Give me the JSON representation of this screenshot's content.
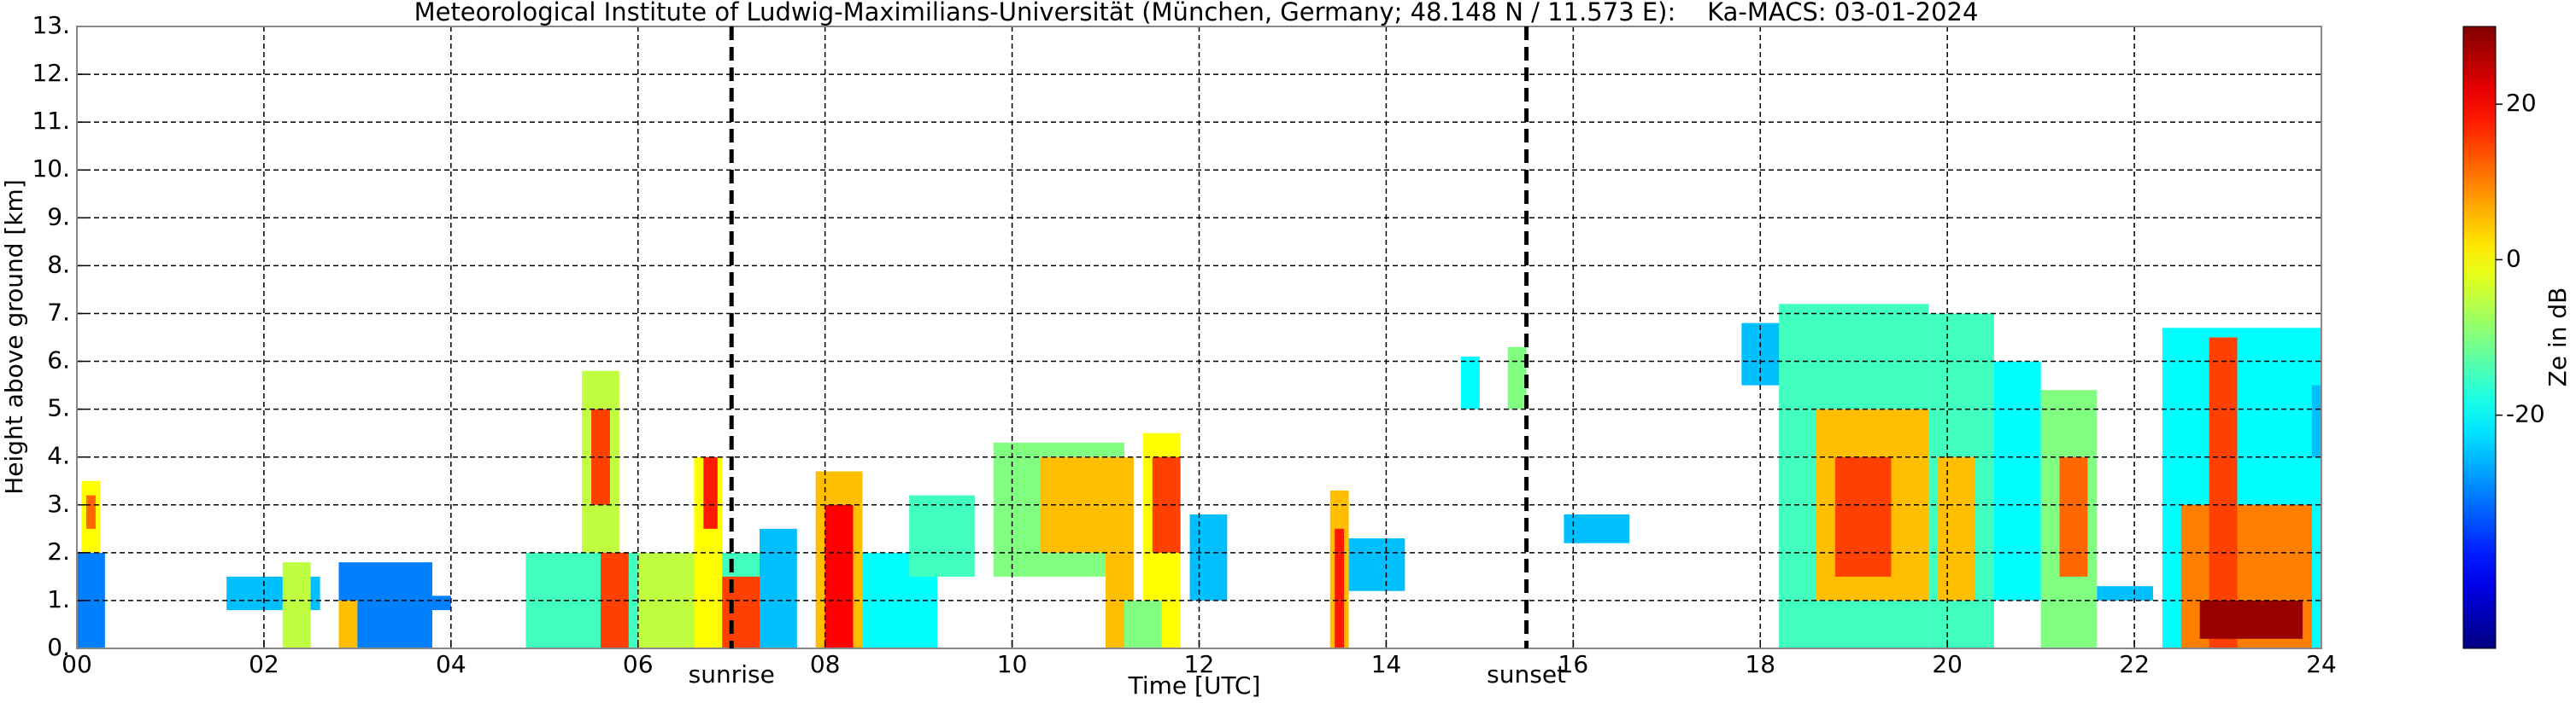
{
  "chart_data": {
    "type": "heatmap",
    "title": "Meteorological Institute of Ludwig-Maximilians-Universität (München, Germany; 48.148 N / 11.573 E):    Ka-MACS: 03-01-2024",
    "x_label": "Time [UTC]",
    "y_label": "Height above ground [km]",
    "colorbar_label": "Ze in dB",
    "colormap": "jet",
    "grid": true,
    "xlim": [
      0,
      24
    ],
    "xticks": [
      {
        "value": 0,
        "label": "00"
      },
      {
        "value": 2,
        "label": "02"
      },
      {
        "value": 4,
        "label": "04"
      },
      {
        "value": 6,
        "label": "06"
      },
      {
        "value": 8,
        "label": "08"
      },
      {
        "value": 10,
        "label": "10"
      },
      {
        "value": 12,
        "label": "12"
      },
      {
        "value": 14,
        "label": "14"
      },
      {
        "value": 16,
        "label": "16"
      },
      {
        "value": 18,
        "label": "18"
      },
      {
        "value": 20,
        "label": "20"
      },
      {
        "value": 22,
        "label": "22"
      },
      {
        "value": 24,
        "label": "24"
      }
    ],
    "ylim": [
      0,
      13
    ],
    "yticks": [
      {
        "value": 0,
        "label": "0."
      },
      {
        "value": 1,
        "label": "1."
      },
      {
        "value": 2,
        "label": "2."
      },
      {
        "value": 3,
        "label": "3."
      },
      {
        "value": 4,
        "label": "4."
      },
      {
        "value": 5,
        "label": "5."
      },
      {
        "value": 6,
        "label": "6."
      },
      {
        "value": 7,
        "label": "7."
      },
      {
        "value": 8,
        "label": "8."
      },
      {
        "value": 9,
        "label": "9."
      },
      {
        "value": 10,
        "label": "10."
      },
      {
        "value": 11,
        "label": "11."
      },
      {
        "value": 12,
        "label": "12."
      },
      {
        "value": 13,
        "label": "13."
      }
    ],
    "clim": [
      -50,
      30
    ],
    "cticks": [
      -20,
      0,
      20
    ],
    "vlines": [
      {
        "x": 7.0,
        "label": "sunrise"
      },
      {
        "x": 15.5,
        "label": "sunset"
      }
    ],
    "cells": [
      {
        "x0": 0.0,
        "x1": 0.3,
        "y0": 0,
        "y1": 2,
        "value": -30
      },
      {
        "x0": 0.05,
        "x1": 0.25,
        "y0": 2,
        "y1": 3.5,
        "value": 0
      },
      {
        "x0": 0.1,
        "x1": 0.2,
        "y0": 2.5,
        "y1": 3.2,
        "value": 12
      },
      {
        "x0": 1.6,
        "x1": 2.6,
        "y0": 0.8,
        "y1": 1.5,
        "value": -25
      },
      {
        "x0": 2.2,
        "x1": 2.5,
        "y0": 0,
        "y1": 1.8,
        "value": -5
      },
      {
        "x0": 2.8,
        "x1": 3.8,
        "y0": 0,
        "y1": 1.8,
        "value": -30
      },
      {
        "x0": 2.8,
        "x1": 3.0,
        "y0": 0,
        "y1": 1,
        "value": 5
      },
      {
        "x0": 3.8,
        "x1": 4.0,
        "y0": 0.8,
        "y1": 1.1,
        "value": -30
      },
      {
        "x0": 4.8,
        "x1": 7.5,
        "y0": 0,
        "y1": 2,
        "value": -15
      },
      {
        "x0": 5.4,
        "x1": 5.8,
        "y0": 2,
        "y1": 5.8,
        "value": -5
      },
      {
        "x0": 5.5,
        "x1": 5.7,
        "y0": 3,
        "y1": 5,
        "value": 15
      },
      {
        "x0": 5.6,
        "x1": 5.9,
        "y0": 0,
        "y1": 2,
        "value": 15
      },
      {
        "x0": 6.0,
        "x1": 6.6,
        "y0": 0,
        "y1": 2,
        "value": -5
      },
      {
        "x0": 6.6,
        "x1": 6.9,
        "y0": 0,
        "y1": 4,
        "value": 0
      },
      {
        "x0": 6.7,
        "x1": 6.85,
        "y0": 2.5,
        "y1": 4,
        "value": 18
      },
      {
        "x0": 6.9,
        "x1": 7.3,
        "y0": 0,
        "y1": 1.5,
        "value": 15
      },
      {
        "x0": 7.3,
        "x1": 7.7,
        "y0": 0,
        "y1": 2.5,
        "value": -25
      },
      {
        "x0": 7.9,
        "x1": 8.4,
        "y0": 0,
        "y1": 3.7,
        "value": 5
      },
      {
        "x0": 8.0,
        "x1": 8.3,
        "y0": 0,
        "y1": 3,
        "value": 20
      },
      {
        "x0": 8.4,
        "x1": 9.2,
        "y0": 0,
        "y1": 2,
        "value": -20
      },
      {
        "x0": 8.9,
        "x1": 9.6,
        "y0": 1.5,
        "y1": 3.2,
        "value": -15
      },
      {
        "x0": 9.8,
        "x1": 11.2,
        "y0": 1.5,
        "y1": 4.3,
        "value": -10
      },
      {
        "x0": 10.3,
        "x1": 11.0,
        "y0": 2,
        "y1": 4,
        "value": 5
      },
      {
        "x0": 11.0,
        "x1": 11.3,
        "y0": 0,
        "y1": 4,
        "value": 5
      },
      {
        "x0": 11.4,
        "x1": 11.8,
        "y0": 0,
        "y1": 4.5,
        "value": 0
      },
      {
        "x0": 11.5,
        "x1": 11.8,
        "y0": 2,
        "y1": 4,
        "value": 15
      },
      {
        "x0": 11.2,
        "x1": 11.6,
        "y0": 0,
        "y1": 1,
        "value": -10
      },
      {
        "x0": 11.9,
        "x1": 12.3,
        "y0": 1,
        "y1": 2.8,
        "value": -25
      },
      {
        "x0": 13.4,
        "x1": 13.6,
        "y0": 0,
        "y1": 3.3,
        "value": 5
      },
      {
        "x0": 13.45,
        "x1": 13.55,
        "y0": 0,
        "y1": 2.5,
        "value": 18
      },
      {
        "x0": 13.6,
        "x1": 14.2,
        "y0": 1.2,
        "y1": 2.3,
        "value": -25
      },
      {
        "x0": 14.8,
        "x1": 15.0,
        "y0": 5,
        "y1": 6.1,
        "value": -20
      },
      {
        "x0": 15.3,
        "x1": 15.5,
        "y0": 5,
        "y1": 6.3,
        "value": -10
      },
      {
        "x0": 15.9,
        "x1": 16.6,
        "y0": 2.2,
        "y1": 2.8,
        "value": -25
      },
      {
        "x0": 17.8,
        "x1": 18.5,
        "y0": 5.5,
        "y1": 6.8,
        "value": -25
      },
      {
        "x0": 18.2,
        "x1": 19.8,
        "y0": 0,
        "y1": 7.2,
        "value": -15
      },
      {
        "x0": 18.6,
        "x1": 19.8,
        "y0": 1,
        "y1": 5,
        "value": 5
      },
      {
        "x0": 18.8,
        "x1": 19.4,
        "y0": 1.5,
        "y1": 4,
        "value": 15
      },
      {
        "x0": 19.8,
        "x1": 20.5,
        "y0": 0,
        "y1": 7,
        "value": -15
      },
      {
        "x0": 19.9,
        "x1": 20.3,
        "y0": 1,
        "y1": 4,
        "value": 5
      },
      {
        "x0": 20.5,
        "x1": 21.0,
        "y0": 1,
        "y1": 6,
        "value": -20
      },
      {
        "x0": 21.0,
        "x1": 21.6,
        "y0": 0,
        "y1": 5.4,
        "value": -10
      },
      {
        "x0": 21.2,
        "x1": 21.5,
        "y0": 1.5,
        "y1": 4,
        "value": 12
      },
      {
        "x0": 21.6,
        "x1": 22.2,
        "y0": 1,
        "y1": 1.3,
        "value": -25
      },
      {
        "x0": 22.3,
        "x1": 24.0,
        "y0": 0,
        "y1": 6.7,
        "value": -20
      },
      {
        "x0": 22.5,
        "x1": 23.9,
        "y0": 0,
        "y1": 3,
        "value": 10
      },
      {
        "x0": 22.8,
        "x1": 23.1,
        "y0": 0,
        "y1": 6.5,
        "value": 15
      },
      {
        "x0": 22.7,
        "x1": 23.8,
        "y0": 0.2,
        "y1": 1,
        "value": 28
      },
      {
        "x0": 23.9,
        "x1": 24.0,
        "y0": 4,
        "y1": 5.5,
        "value": -25
      }
    ]
  }
}
